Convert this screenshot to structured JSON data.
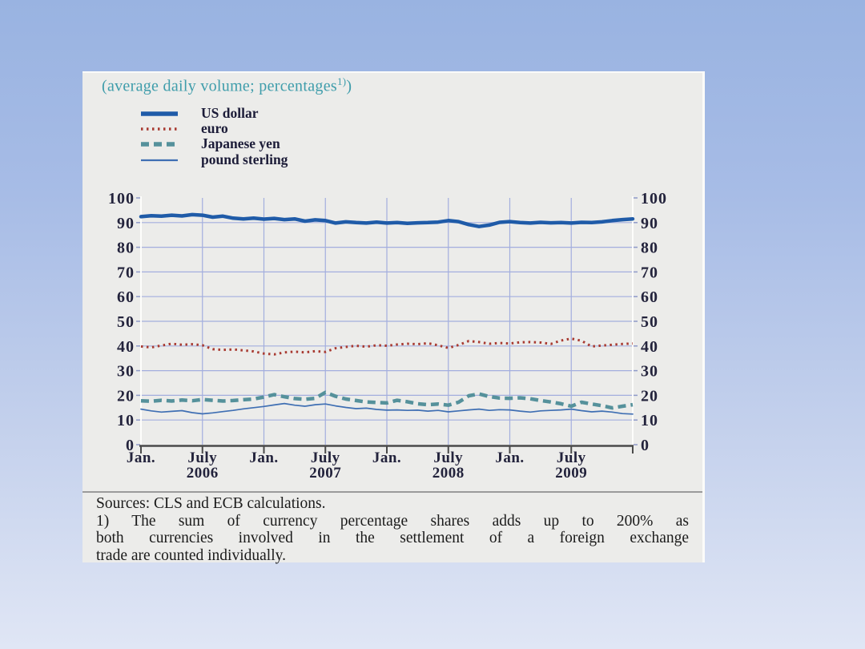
{
  "slide": {
    "background_top_color": "#99b3e1",
    "background_bottom_color": "#e0e6f5",
    "panel_color": "#ececea"
  },
  "header": {
    "title": "(average daily volume; percentages",
    "title_sup": "1)",
    "title_close": ")",
    "title_color": "#3f9dab"
  },
  "chart_data": {
    "type": "line",
    "title": "(average daily volume; percentages 1))",
    "x_unit": "month",
    "x_start": "Jan 2006",
    "x_end": "Jan 2010",
    "ylim": [
      0,
      100
    ],
    "y_tick_step": 10,
    "y_ticks": [
      0,
      10,
      20,
      30,
      40,
      50,
      60,
      70,
      80,
      90,
      100
    ],
    "grid": true,
    "grid_color": "#a3aede",
    "axis_line_color": "#4a4a4a",
    "axis_label_color": "#23233c",
    "legend_position": "top-left",
    "x_ticks": [
      {
        "label": "Jan.",
        "month": 0,
        "year": ""
      },
      {
        "label": "July",
        "month": 6,
        "year": "2006"
      },
      {
        "label": "Jan.",
        "month": 12,
        "year": ""
      },
      {
        "label": "July",
        "month": 18,
        "year": "2007"
      },
      {
        "label": "Jan.",
        "month": 24,
        "year": ""
      },
      {
        "label": "July",
        "month": 30,
        "year": "2008"
      },
      {
        "label": "Jan.",
        "month": 36,
        "year": ""
      },
      {
        "label": "July",
        "month": 42,
        "year": "2009"
      }
    ],
    "series": [
      {
        "name": "US dollar",
        "color": "#1f5ba8",
        "line_width": 4.5,
        "dash": "",
        "values": [
          92.4,
          92.8,
          92.6,
          93.0,
          92.7,
          93.2,
          93.0,
          92.2,
          92.6,
          91.8,
          91.5,
          91.8,
          91.4,
          91.7,
          91.2,
          91.5,
          90.6,
          91.1,
          90.8,
          89.8,
          90.3,
          90.0,
          89.8,
          90.2,
          89.8,
          90.0,
          89.7,
          89.9,
          90.0,
          90.2,
          90.8,
          90.4,
          89.2,
          88.4,
          89.0,
          90.1,
          90.4,
          90.0,
          89.8,
          90.1,
          89.9,
          90.0,
          89.8,
          90.1,
          90.0,
          90.3,
          90.8,
          91.2,
          91.5
        ]
      },
      {
        "name": "euro",
        "color": "#a83a31",
        "line_width": 3,
        "dash": "2.5 4.5",
        "values": [
          39.8,
          39.4,
          40.2,
          40.9,
          40.5,
          40.7,
          40.3,
          38.7,
          38.4,
          38.6,
          38.2,
          37.8,
          36.9,
          36.6,
          37.4,
          37.7,
          37.4,
          37.9,
          37.6,
          39.1,
          39.6,
          40.1,
          39.7,
          40.3,
          40.1,
          40.6,
          40.9,
          40.7,
          41.1,
          40.3,
          39.2,
          40.4,
          42.0,
          41.6,
          40.9,
          41.2,
          41.0,
          41.5,
          41.6,
          41.4,
          40.8,
          42.2,
          43.0,
          42.1,
          39.8,
          40.2,
          40.5,
          40.8,
          41.0
        ]
      },
      {
        "name": "Japanese yen",
        "color": "#55919b",
        "line_width": 4.5,
        "dash": "10 6",
        "values": [
          17.8,
          17.6,
          18.0,
          17.7,
          18.1,
          17.8,
          18.3,
          18.0,
          17.7,
          17.9,
          18.2,
          18.5,
          19.3,
          20.3,
          19.4,
          18.7,
          18.4,
          18.8,
          21.2,
          19.6,
          18.5,
          17.9,
          17.3,
          17.1,
          16.9,
          18.0,
          17.4,
          16.6,
          16.2,
          16.5,
          16.0,
          17.2,
          19.8,
          20.6,
          19.5,
          18.9,
          18.8,
          19.0,
          18.6,
          17.9,
          17.3,
          16.6,
          15.6,
          17.2,
          16.5,
          15.8,
          14.9,
          15.6,
          16.2
        ]
      },
      {
        "name": "pound sterling",
        "color": "#3f6fb3",
        "line_width": 1.7,
        "dash": "",
        "values": [
          14.4,
          13.7,
          13.2,
          13.5,
          13.8,
          13.0,
          12.5,
          12.9,
          13.4,
          13.9,
          14.5,
          15.0,
          15.5,
          16.1,
          16.7,
          16.0,
          15.6,
          16.2,
          16.5,
          15.7,
          15.1,
          14.6,
          14.8,
          14.3,
          14.0,
          14.1,
          13.9,
          14.0,
          13.6,
          13.9,
          13.3,
          13.7,
          14.1,
          14.4,
          13.9,
          14.2,
          14.1,
          13.6,
          13.2,
          13.7,
          13.9,
          14.1,
          14.4,
          13.8,
          13.3,
          13.6,
          13.2,
          12.6,
          12.4
        ]
      }
    ]
  },
  "footer": {
    "sources": "Sources: CLS and ECB calculations.",
    "footnote_lines": [
      "1) The sum of currency percentage shares adds up to 200% as",
      "both currencies involved in the settlement of a foreign exchange",
      "trade are counted individually."
    ]
  }
}
